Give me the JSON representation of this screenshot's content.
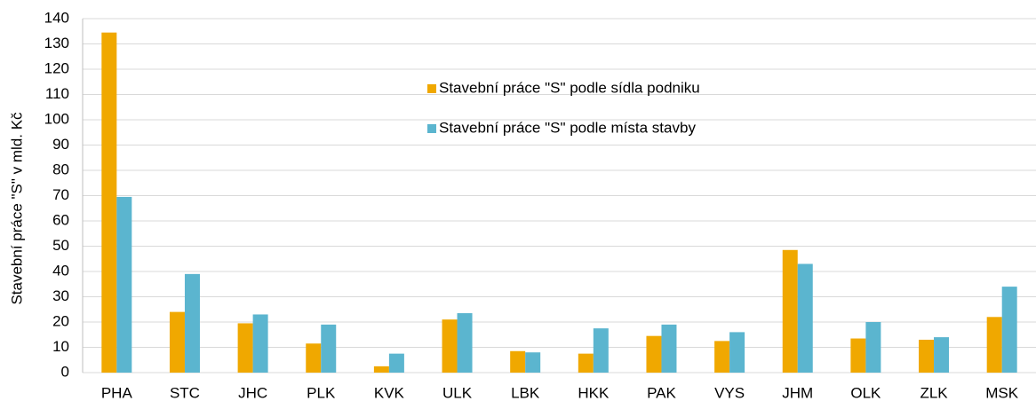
{
  "chart_data": {
    "type": "bar",
    "y_label": "Stavební práce \"S\" v mld. Kč",
    "categories": [
      "PHA",
      "STC",
      "JHC",
      "PLK",
      "KVK",
      "ULK",
      "LBK",
      "HKK",
      "PAK",
      "VYS",
      "JHM",
      "OLK",
      "ZLK",
      "MSK"
    ],
    "series": [
      {
        "name": "Stavební práce \"S\" podle sídla podniku",
        "color": "#f0a800",
        "values": [
          134.5,
          24,
          19.5,
          11.5,
          2.5,
          21,
          8.5,
          7.5,
          14.5,
          12.5,
          48.5,
          13.5,
          13,
          22
        ]
      },
      {
        "name": "Stavební práce \"S\" podle místa stavby",
        "color": "#5bb5cf",
        "values": [
          69.5,
          39,
          23,
          19,
          7.5,
          23.5,
          8,
          17.5,
          19,
          16,
          43,
          20,
          14,
          34
        ]
      }
    ],
    "ylim": [
      0,
      140
    ],
    "yticks": [
      0,
      10,
      20,
      30,
      40,
      50,
      60,
      70,
      80,
      90,
      100,
      110,
      120,
      130,
      140
    ],
    "grid": true
  }
}
